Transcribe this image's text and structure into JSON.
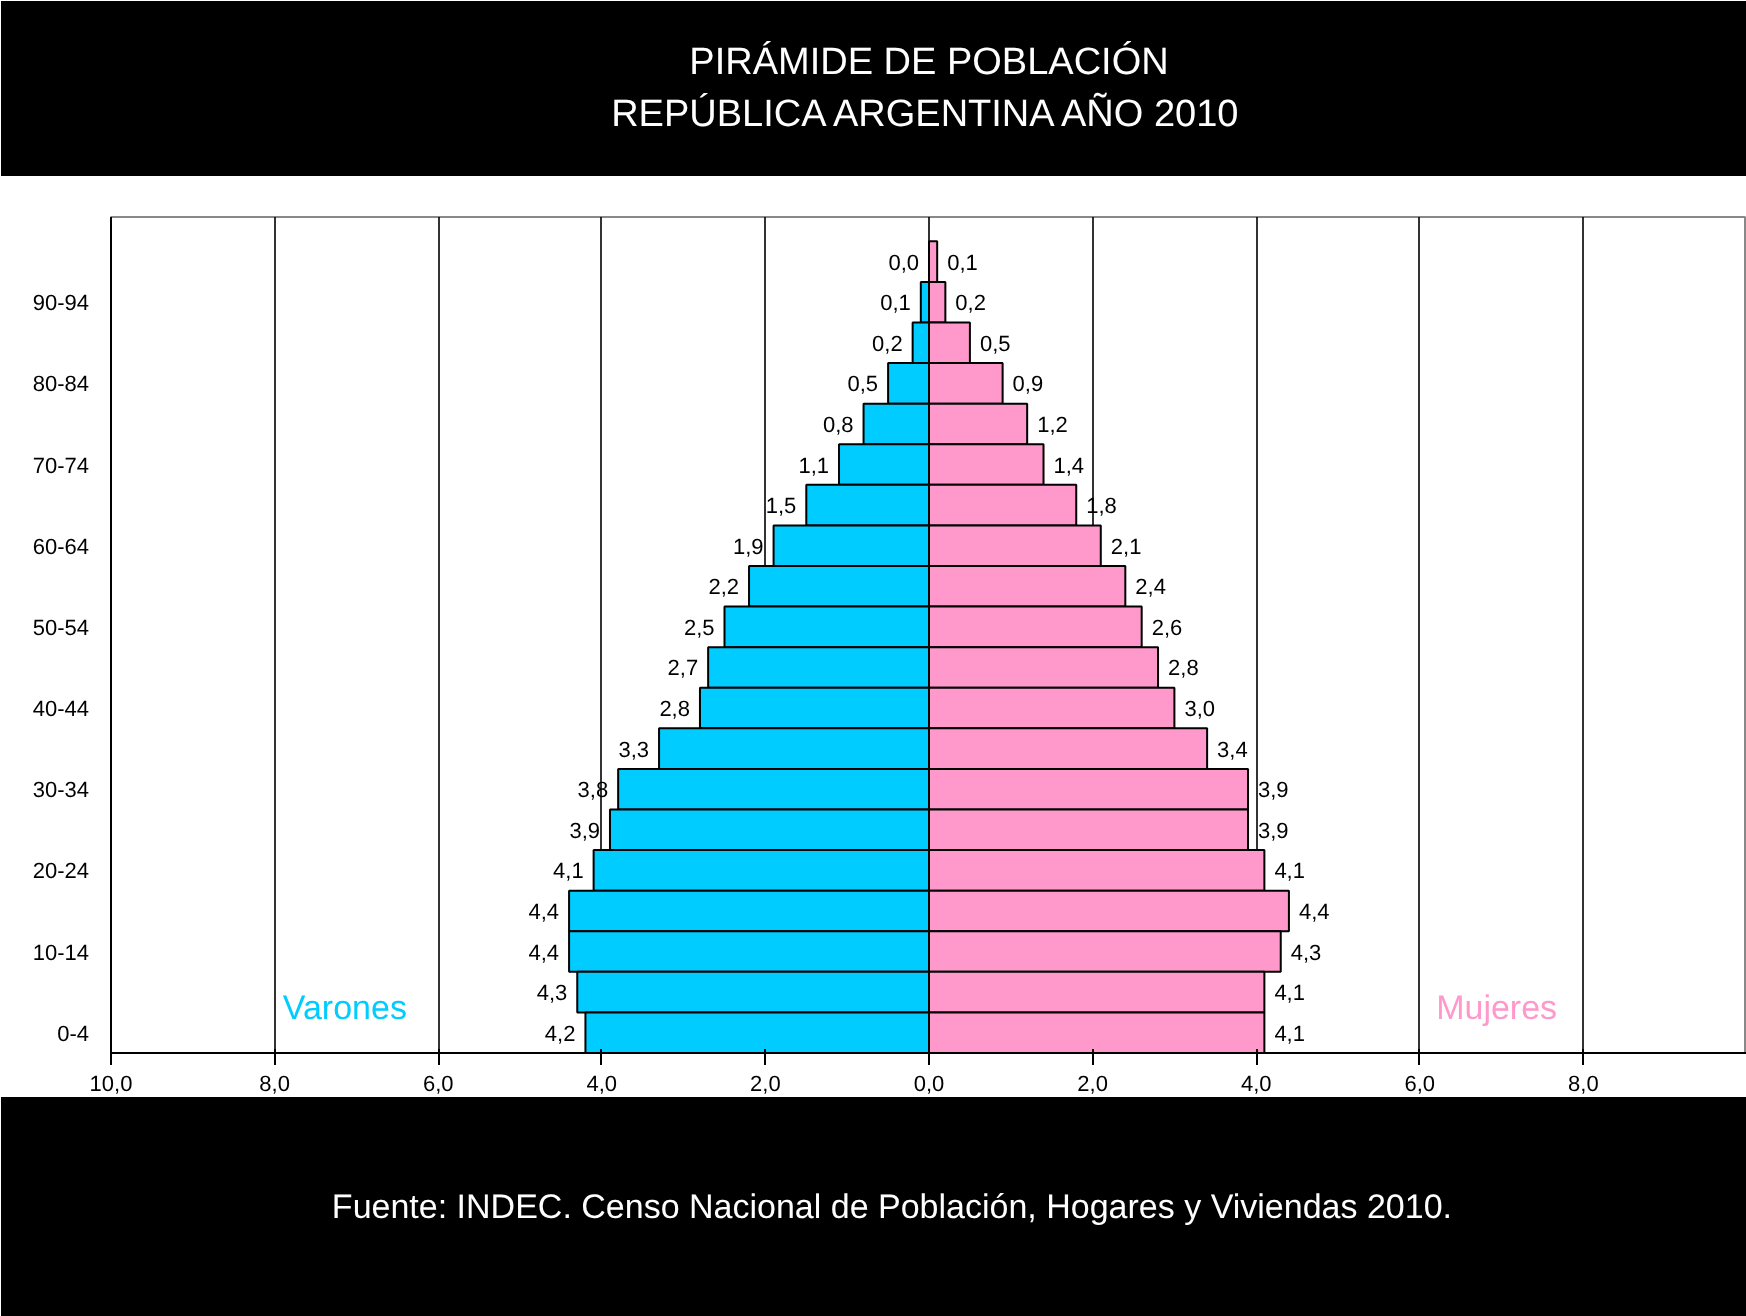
{
  "chart_data": {
    "type": "bar",
    "orientation": "horizontal",
    "title": "PIRÁMIDE DE POBLACIÓN\nREPÚBLICA ARGENTINA AÑO 2010",
    "categories": [
      null,
      "90-94",
      null,
      "80-84",
      null,
      "70-74",
      null,
      "60-64",
      null,
      "50-54",
      null,
      "40-44",
      null,
      "30-34",
      null,
      "20-24",
      null,
      "10-14",
      null,
      "0-4"
    ],
    "series": [
      {
        "name": "Varones",
        "color": "#00ccff",
        "values": [
          0.0,
          0.1,
          0.2,
          0.5,
          0.8,
          1.1,
          1.5,
          1.9,
          2.2,
          2.5,
          2.7,
          2.8,
          3.3,
          3.8,
          3.9,
          4.1,
          4.4,
          4.4,
          4.3,
          4.2
        ],
        "base": [
          -0.0,
          -0.1,
          -0.2,
          -0.5,
          -0.8,
          -1.1,
          -1.5,
          -1.9,
          -2.2,
          -2.5,
          -2.7,
          -2.8,
          -3.3,
          -3.8,
          -3.9,
          -4.1,
          -4.4,
          -4.4,
          -4.3,
          -4.2
        ],
        "value_labels": [
          "0,0",
          "0,1",
          "0,2",
          "0,5",
          "0,8",
          "1,1",
          "1,5",
          "1,9",
          "2,2",
          "2,5",
          "2,7",
          "2,8",
          "3,3",
          "3,8",
          "3,9",
          "4,1",
          "4,4",
          "4,4",
          "4,3",
          "4,2"
        ]
      },
      {
        "name": "Mujeres",
        "color": "#ff99cc",
        "values": [
          0.1,
          0.2,
          0.5,
          0.9,
          1.2,
          1.4,
          1.8,
          2.1,
          2.4,
          2.6,
          2.8,
          3.0,
          3.4,
          3.9,
          3.9,
          4.1,
          4.4,
          4.3,
          4.1,
          4.1
        ],
        "value_labels": [
          "0,1",
          "0,2",
          "0,5",
          "0,9",
          "1,2",
          "1,4",
          "1,8",
          "2,1",
          "2,4",
          "2,6",
          "2,8",
          "3,0",
          "3,4",
          "3,9",
          "3,9",
          "4,1",
          "4,4",
          "4,3",
          "4,1",
          "4,1"
        ]
      }
    ],
    "xlim": [
      -10,
      10
    ],
    "xticks": [
      {
        "value": -10,
        "label": "10,0"
      },
      {
        "value": -8,
        "label": "8,0"
      },
      {
        "value": -6,
        "label": "6,0"
      },
      {
        "value": -4,
        "label": "4,0"
      },
      {
        "value": -2,
        "label": "2,0"
      },
      {
        "value": 0,
        "label": "0,0"
      },
      {
        "value": 2,
        "label": "2,0"
      },
      {
        "value": 4,
        "label": "4,0"
      },
      {
        "value": 6,
        "label": "6,0"
      },
      {
        "value": 8,
        "label": "8,0"
      }
    ],
    "grid": "x",
    "legend": false,
    "annotations": [
      "Fuente: INDEC. Censo Nacional de Población, Hogares y Viviendas 2010."
    ]
  }
}
